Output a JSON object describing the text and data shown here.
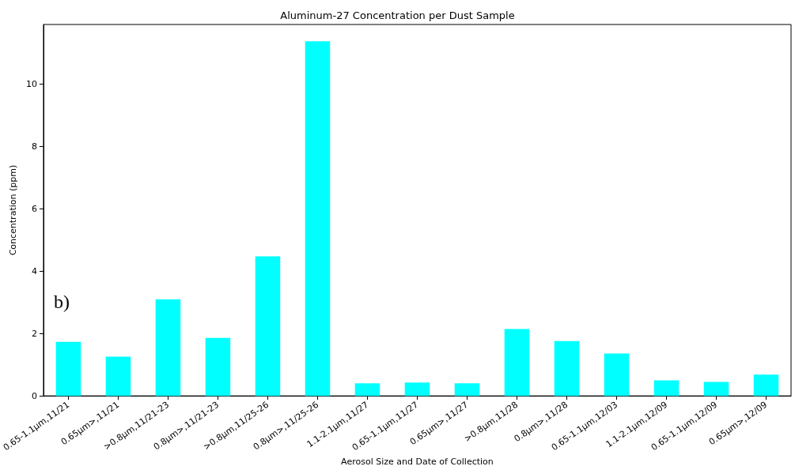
{
  "chart_data": {
    "type": "bar",
    "title": "Aluminum-27 Concentration per Dust Sample",
    "xlabel": "Aerosol Size and Date of Collection",
    "ylabel": "Concentration (ppm)",
    "categories": [
      "0.65-1.1μm,11/21",
      "0.65μm>,11/21",
      ">0.8μm,11/21-23",
      "0.8μm>,11/21-23",
      ">0.8μm,11/25-26",
      "0.8μm>,11/25-26",
      "1.1-2.1μm,11/27",
      "0.65-1.1μm,11/27",
      "0.65μm>,11/27",
      ">0.8μm,11/28",
      "0.8μm>,11/28",
      "0.65-1.1μm,12/03",
      "1.1-2.1μm,12/09",
      "0.65-1.1μm,12/09",
      "0.65μm>,12/09"
    ],
    "values": [
      1.73,
      1.26,
      3.09,
      1.86,
      4.47,
      11.36,
      0.4,
      0.43,
      0.4,
      2.14,
      1.76,
      1.36,
      0.5,
      0.45,
      0.68
    ],
    "color": "#00ffff",
    "ylim": [
      0,
      11.9
    ],
    "yticks": [
      0,
      2,
      4,
      6,
      8,
      10
    ],
    "grid": false,
    "annotations": [
      "b)"
    ]
  }
}
